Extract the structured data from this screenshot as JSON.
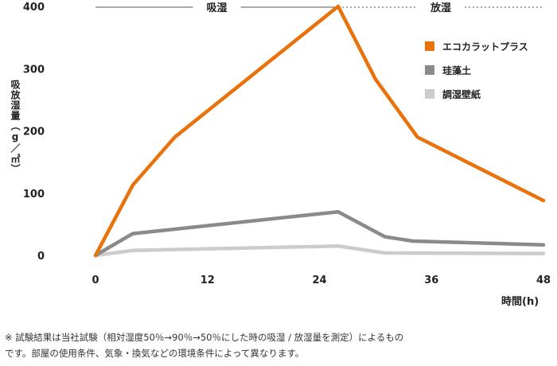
{
  "chart_data": {
    "type": "line",
    "ylabel": "吸放湿量（g／㎡）",
    "xlabel": "時間(h)",
    "x_ticks": [
      0,
      12,
      24,
      36,
      48
    ],
    "y_ticks": [
      0,
      100,
      200,
      300,
      400
    ],
    "xlim": [
      0,
      48
    ],
    "ylim": [
      0,
      400
    ],
    "grid": false,
    "legend_position": "top-right",
    "phases": [
      {
        "label": "吸湿",
        "from": 0,
        "to": 26,
        "style": "solid"
      },
      {
        "label": "放湿",
        "from": 26,
        "to": 48,
        "style": "dotted"
      }
    ],
    "series": [
      {
        "name": "エコカラットプラス",
        "color": "#e8720c",
        "x": [
          0,
          4,
          8.5,
          26,
          30,
          34.5,
          48
        ],
        "y": [
          0,
          113,
          190,
          400,
          283,
          190,
          88
        ]
      },
      {
        "name": "珪藻土",
        "color": "#8a8a8a",
        "x": [
          0,
          4,
          26,
          31,
          34,
          48
        ],
        "y": [
          0,
          35,
          70,
          30,
          23,
          17
        ]
      },
      {
        "name": "調湿壁紙",
        "color": "#cccccc",
        "x": [
          0,
          4,
          26,
          31,
          48
        ],
        "y": [
          0,
          8,
          15,
          4,
          3
        ]
      }
    ]
  },
  "footnote": {
    "line1": "※ 試験結果は当社試験（相対湿度50％→90％→50％にした時の吸湿 / 放湿量を測定）によるもの",
    "line2": "です。部屋の使用条件、気象・換気などの環境条件によって異なります。"
  }
}
